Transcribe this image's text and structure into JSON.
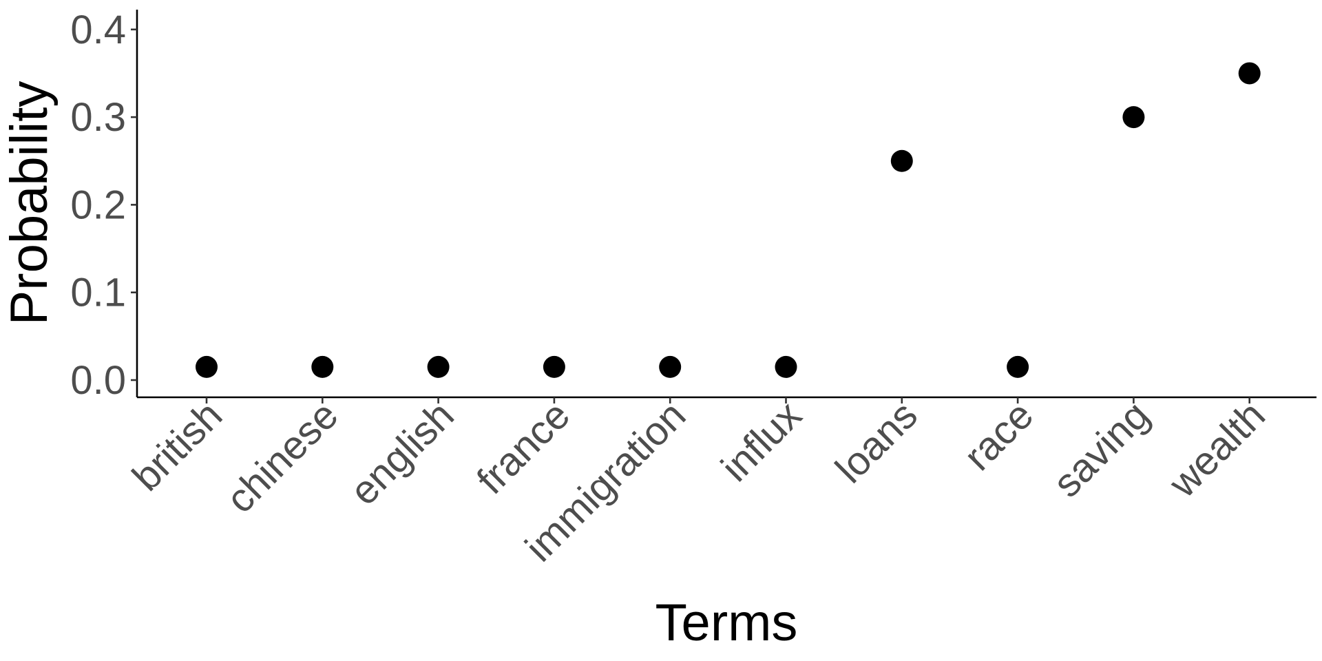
{
  "chart_data": {
    "type": "scatter",
    "title": "",
    "xlabel": "Terms",
    "ylabel": "Probability",
    "categories": [
      "british",
      "chinese",
      "english",
      "france",
      "immigration",
      "influx",
      "loans",
      "race",
      "saving",
      "wealth"
    ],
    "values": [
      0.015,
      0.015,
      0.015,
      0.015,
      0.015,
      0.015,
      0.25,
      0.015,
      0.3,
      0.35
    ],
    "ylim": [
      -0.02,
      0.42
    ],
    "yticks": [
      "0.0",
      "0.1",
      "0.2",
      "0.3",
      "0.4"
    ],
    "grid": false,
    "legend": "none",
    "point_color": "#000000"
  }
}
